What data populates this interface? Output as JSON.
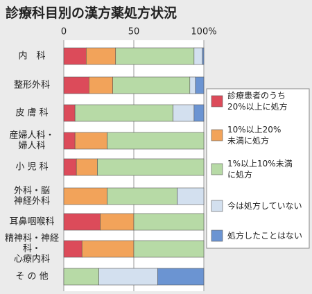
{
  "chart_data": {
    "type": "stacked-bar-horizontal",
    "title": "診療科目別の漢方薬処方状況",
    "categories": [
      "内　科",
      "整形外科",
      "皮 膚 科",
      "産婦人科・\n婦人科",
      "小 児 科",
      "外科・脳\n神経外科",
      "耳鼻咽喉科",
      "精神科・神経科・\n心療内科",
      "そ の 他"
    ],
    "series": [
      {
        "name": "診療患者のうち\n20%以上に処方",
        "color": "#dc4b5a",
        "values": [
          16,
          18,
          8,
          8,
          9,
          0,
          26,
          13,
          0
        ]
      },
      {
        "name": "10%以上20%\n未満に処方",
        "color": "#f2a35a",
        "values": [
          21,
          17,
          0,
          23,
          15,
          31,
          24,
          37,
          0
        ]
      },
      {
        "name": "1%以上10%未満\nに処方",
        "color": "#b7daa6",
        "values": [
          56,
          55,
          70,
          69,
          76,
          50,
          50,
          50,
          25
        ]
      },
      {
        "name": "今は処方していない",
        "color": "#d3e0ef",
        "values": [
          6,
          4,
          15,
          0,
          0,
          19,
          0,
          0,
          42
        ]
      },
      {
        "name": "処方したことはない",
        "color": "#6b94d2",
        "values": [
          1,
          6,
          7,
          0,
          0,
          0,
          0,
          0,
          33
        ]
      }
    ],
    "xlim": [
      0,
      100
    ],
    "xticks": [
      0,
      50,
      {
        "value": 100,
        "label": "100%"
      }
    ],
    "grid": true
  }
}
